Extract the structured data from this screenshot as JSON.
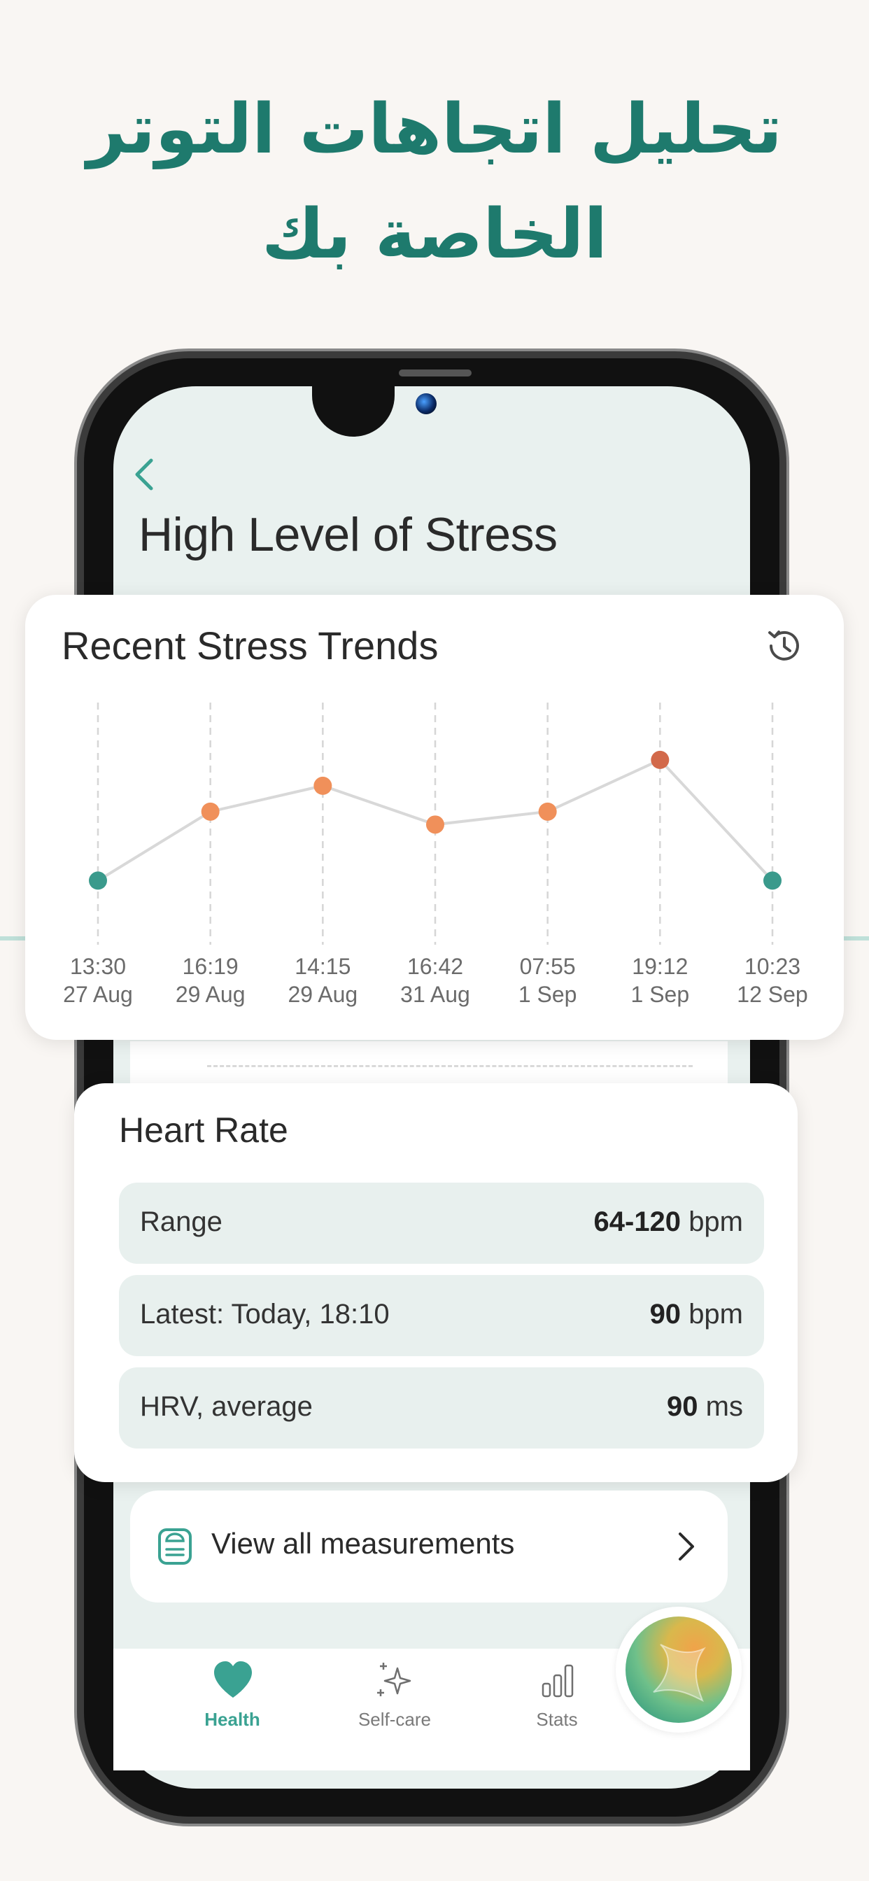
{
  "headline": {
    "line1": "تحليل اتجاهات التوتر",
    "line2": "الخاصة بك"
  },
  "screen": {
    "title": "High Level of Stress"
  },
  "stress_card": {
    "title": "Recent Stress Trends"
  },
  "chart_data": {
    "type": "line",
    "title": "Recent Stress Trends",
    "x": [
      {
        "time": "13:30",
        "date": "27 Aug"
      },
      {
        "time": "16:19",
        "date": "29 Aug"
      },
      {
        "time": "14:15",
        "date": "29 Aug"
      },
      {
        "time": "16:42",
        "date": "31 Aug"
      },
      {
        "time": "07:55",
        "date": "1 Sep"
      },
      {
        "time": "19:12",
        "date": "1 Sep"
      },
      {
        "time": "10:23",
        "date": "12 Sep"
      }
    ],
    "values": [
      20,
      52,
      64,
      46,
      52,
      76,
      20
    ],
    "point_colors": [
      "#3a9a8c",
      "#f0905a",
      "#f0905a",
      "#f0905a",
      "#f0905a",
      "#d2694a",
      "#3a9a8c"
    ],
    "ylim": [
      0,
      100
    ],
    "grid": "vertical dashed lines",
    "line_color": "#d8d8d8"
  },
  "heart_rate": {
    "title": "Heart Rate",
    "rows": [
      {
        "label": "Range",
        "value": "64-120",
        "unit": "bpm"
      },
      {
        "label": "Latest: Today, 18:10",
        "value": "90",
        "unit": "bpm"
      },
      {
        "label": "HRV, average",
        "value": "90",
        "unit": "ms"
      }
    ]
  },
  "measurements": {
    "label": "View all measurements"
  },
  "tabbar": {
    "tabs": [
      {
        "label": "Health",
        "icon": "heart-icon",
        "active": true
      },
      {
        "label": "Self-care",
        "icon": "sparkle-icon",
        "active": false
      },
      {
        "label": "Stats",
        "icon": "bar-chart-icon",
        "active": false
      }
    ]
  },
  "colors": {
    "accent": "#1e7a6d",
    "teal": "#3aa292",
    "orange": "#f0905a",
    "red": "#d2694a"
  }
}
